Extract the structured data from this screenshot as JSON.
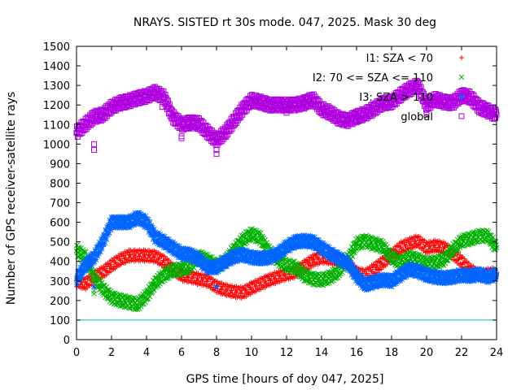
{
  "chart_data": {
    "type": "scatter",
    "title": "NRAYS. SISTED rt 30s mode. 047, 2025. Mask 30 deg",
    "xlabel": "GPS time [hours of doy 047, 2025]",
    "ylabel": "Number of GPS receiver-satellite rays",
    "xlim": [
      0,
      24
    ],
    "ylim": [
      0,
      1500
    ],
    "xticks": [
      "0",
      "2",
      "4",
      "6",
      "8",
      "10",
      "12",
      "14",
      "16",
      "18",
      "20",
      "22",
      "24"
    ],
    "yticks": [
      "0",
      "100",
      "200",
      "300",
      "400",
      "500",
      "600",
      "700",
      "800",
      "900",
      "1000",
      "1100",
      "1200",
      "1300",
      "1400",
      "1500"
    ],
    "threshold": {
      "value": 100,
      "color": "#00c0c0"
    },
    "legend_position": "top-right",
    "series": [
      {
        "name": "I1: SZA < 70",
        "marker": "+",
        "color": "#ff0000",
        "points": [
          [
            0,
            300
          ],
          [
            0.5,
            285
          ],
          [
            1,
            320
          ],
          [
            1.5,
            345
          ],
          [
            2,
            380
          ],
          [
            2.5,
            410
          ],
          [
            3,
            430
          ],
          [
            3.5,
            430
          ],
          [
            4,
            430
          ],
          [
            4.5,
            425
          ],
          [
            5,
            400
          ],
          [
            5.5,
            360
          ],
          [
            6,
            330
          ],
          [
            6.5,
            320
          ],
          [
            7,
            310
          ],
          [
            7.5,
            300
          ],
          [
            8,
            270
          ],
          [
            8.5,
            255
          ],
          [
            9,
            245
          ],
          [
            9.5,
            240
          ],
          [
            10,
            265
          ],
          [
            10.5,
            285
          ],
          [
            11,
            305
          ],
          [
            11.5,
            320
          ],
          [
            12,
            335
          ],
          [
            12.5,
            345
          ],
          [
            13,
            375
          ],
          [
            13.5,
            405
          ],
          [
            14,
            420
          ],
          [
            14.5,
            415
          ],
          [
            15,
            405
          ],
          [
            15.5,
            390
          ],
          [
            16,
            340
          ],
          [
            16.5,
            330
          ],
          [
            17,
            360
          ],
          [
            17.5,
            395
          ],
          [
            18,
            430
          ],
          [
            18.5,
            470
          ],
          [
            19,
            490
          ],
          [
            19.5,
            505
          ],
          [
            20,
            470
          ],
          [
            20.5,
            480
          ],
          [
            21,
            470
          ],
          [
            21.5,
            440
          ],
          [
            22,
            400
          ],
          [
            22.5,
            355
          ],
          [
            23,
            330
          ],
          [
            23.5,
            335
          ],
          [
            24,
            340
          ]
        ]
      },
      {
        "name": "I2: 70 <= SZA <= 110",
        "marker": "x",
        "color": "#00b000",
        "points": [
          [
            0,
            455
          ],
          [
            0.5,
            425
          ],
          [
            1,
            320
          ],
          [
            1.5,
            260
          ],
          [
            2,
            215
          ],
          [
            2.5,
            200
          ],
          [
            3,
            190
          ],
          [
            3.5,
            180
          ],
          [
            4,
            225
          ],
          [
            4.5,
            290
          ],
          [
            5,
            330
          ],
          [
            5.5,
            355
          ],
          [
            6,
            360
          ],
          [
            6.5,
            375
          ],
          [
            7,
            425
          ],
          [
            7.5,
            405
          ],
          [
            8,
            380
          ],
          [
            8.5,
            400
          ],
          [
            9,
            460
          ],
          [
            9.5,
            510
          ],
          [
            10,
            540
          ],
          [
            10.5,
            520
          ],
          [
            11,
            450
          ],
          [
            11.5,
            410
          ],
          [
            12,
            380
          ],
          [
            12.5,
            370
          ],
          [
            13,
            330
          ],
          [
            13.5,
            310
          ],
          [
            14,
            305
          ],
          [
            14.5,
            320
          ],
          [
            15,
            350
          ],
          [
            15.5,
            410
          ],
          [
            16,
            490
          ],
          [
            16.5,
            505
          ],
          [
            17,
            490
          ],
          [
            17.5,
            475
          ],
          [
            18,
            420
          ],
          [
            18.5,
            395
          ],
          [
            19,
            420
          ],
          [
            19.5,
            410
          ],
          [
            20,
            390
          ],
          [
            20.5,
            395
          ],
          [
            21,
            410
          ],
          [
            21.5,
            460
          ],
          [
            22,
            505
          ],
          [
            22.5,
            515
          ],
          [
            23,
            530
          ],
          [
            23.5,
            530
          ],
          [
            24,
            470
          ]
        ]
      },
      {
        "name": "I3: SZA > 110",
        "marker": "*",
        "color": "#0066ff",
        "points": [
          [
            0,
            310
          ],
          [
            0.5,
            380
          ],
          [
            1,
            420
          ],
          [
            1.5,
            500
          ],
          [
            2,
            600
          ],
          [
            2.5,
            600
          ],
          [
            3,
            600
          ],
          [
            3.5,
            625
          ],
          [
            4,
            600
          ],
          [
            4.5,
            525
          ],
          [
            5,
            500
          ],
          [
            5.5,
            470
          ],
          [
            6,
            440
          ],
          [
            6.5,
            435
          ],
          [
            7,
            410
          ],
          [
            7.5,
            370
          ],
          [
            8,
            370
          ],
          [
            8.5,
            400
          ],
          [
            9,
            425
          ],
          [
            9.5,
            435
          ],
          [
            10,
            420
          ],
          [
            10.5,
            415
          ],
          [
            11,
            420
          ],
          [
            11.5,
            440
          ],
          [
            12,
            475
          ],
          [
            12.5,
            500
          ],
          [
            13,
            505
          ],
          [
            13.5,
            500
          ],
          [
            14,
            470
          ],
          [
            14.5,
            440
          ],
          [
            15,
            415
          ],
          [
            15.5,
            390
          ],
          [
            16,
            325
          ],
          [
            16.5,
            280
          ],
          [
            17,
            295
          ],
          [
            17.5,
            305
          ],
          [
            18,
            300
          ],
          [
            18.5,
            330
          ],
          [
            19,
            360
          ],
          [
            19.5,
            350
          ],
          [
            20,
            330
          ],
          [
            20.5,
            320
          ],
          [
            21,
            315
          ],
          [
            21.5,
            320
          ],
          [
            22,
            330
          ],
          [
            22.5,
            325
          ],
          [
            23,
            335
          ],
          [
            23.5,
            320
          ],
          [
            24,
            335
          ]
        ]
      },
      {
        "name": "global",
        "marker": "square",
        "color": "#b000e0",
        "points": [
          [
            0,
            1060
          ],
          [
            0.5,
            1100
          ],
          [
            1,
            1140
          ],
          [
            1.5,
            1150
          ],
          [
            2,
            1190
          ],
          [
            2.5,
            1210
          ],
          [
            3,
            1220
          ],
          [
            3.5,
            1235
          ],
          [
            4,
            1245
          ],
          [
            4.5,
            1265
          ],
          [
            5,
            1240
          ],
          [
            5.5,
            1140
          ],
          [
            6,
            1100
          ],
          [
            6.5,
            1110
          ],
          [
            7,
            1105
          ],
          [
            7.5,
            1060
          ],
          [
            8,
            1020
          ],
          [
            8.5,
            1060
          ],
          [
            9,
            1120
          ],
          [
            9.5,
            1180
          ],
          [
            10,
            1225
          ],
          [
            10.5,
            1215
          ],
          [
            11,
            1200
          ],
          [
            11.5,
            1200
          ],
          [
            12,
            1200
          ],
          [
            12.5,
            1200
          ],
          [
            13,
            1210
          ],
          [
            13.5,
            1230
          ],
          [
            14,
            1180
          ],
          [
            14.5,
            1160
          ],
          [
            15,
            1130
          ],
          [
            15.5,
            1120
          ],
          [
            16,
            1140
          ],
          [
            16.5,
            1155
          ],
          [
            17,
            1180
          ],
          [
            17.5,
            1210
          ],
          [
            18,
            1215
          ],
          [
            18.5,
            1250
          ],
          [
            19,
            1280
          ],
          [
            19.5,
            1300
          ],
          [
            20,
            1200
          ],
          [
            20.5,
            1230
          ],
          [
            21,
            1215
          ],
          [
            21.5,
            1210
          ],
          [
            22,
            1250
          ],
          [
            22.5,
            1240
          ],
          [
            23,
            1190
          ],
          [
            23.5,
            1170
          ],
          [
            24,
            1150
          ]
        ]
      }
    ],
    "outliers": [
      {
        "series": 3,
        "points": [
          [
            1,
            1000
          ],
          [
            1,
            970
          ],
          [
            4.9,
            1190
          ],
          [
            6,
            1040
          ],
          [
            6,
            1030
          ],
          [
            8,
            970
          ],
          [
            8,
            950
          ],
          [
            12,
            1180
          ],
          [
            12,
            1160
          ],
          [
            16,
            1120
          ],
          [
            20,
            1160
          ],
          [
            20,
            1150
          ]
        ]
      },
      {
        "series": 1,
        "points": [
          [
            1,
            235
          ],
          [
            1,
            250
          ]
        ]
      },
      {
        "series": 2,
        "points": [
          [
            1,
            270
          ],
          [
            8,
            270
          ]
        ]
      }
    ]
  }
}
